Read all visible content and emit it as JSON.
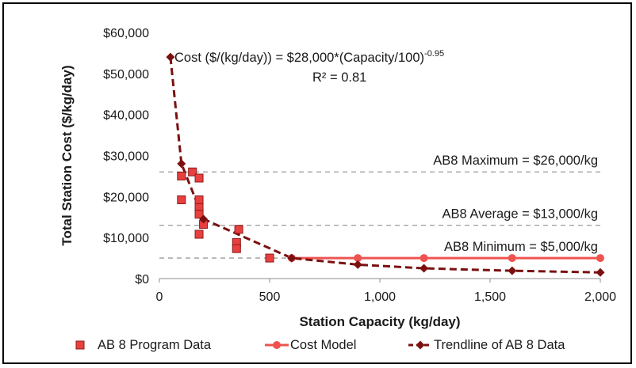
{
  "chart_data": {
    "type": "scatter",
    "xlabel": "Station Capacity (kg/day)",
    "ylabel": "Total Station Cost ($/kg/day)",
    "xlim": [
      0,
      2000
    ],
    "ylim": [
      0,
      60000
    ],
    "x_ticks": [
      "0",
      "500",
      "1,000",
      "1,500",
      "2,000"
    ],
    "y_ticks": [
      "$0",
      "$10,000",
      "$20,000",
      "$30,000",
      "$40,000",
      "$50,000",
      "$60,000"
    ],
    "x_tick_values": [
      0,
      500,
      1000,
      1500,
      2000
    ],
    "y_tick_values": [
      0,
      10000,
      20000,
      30000,
      40000,
      50000,
      60000
    ],
    "equation": {
      "main": "Cost ($/(kg/day)) = $28,000*(Capacity/100)",
      "exponent": "-0.95",
      "r2": "R² = 0.81"
    },
    "reference_lines": [
      {
        "label": "AB8 Maximum = $26,000/kg",
        "y": 26000
      },
      {
        "label": "AB8 Average = $13,000/kg",
        "y": 13000
      },
      {
        "label": "AB8 Minimum = $5,000/kg",
        "y": 5000
      }
    ],
    "series": [
      {
        "name": "AB 8 Program Data",
        "kind": "scatter",
        "marker": "square",
        "color": "#e8403f",
        "edge_color": "#8b1a1a",
        "points": [
          [
            100,
            25000
          ],
          [
            150,
            26000
          ],
          [
            180,
            24500
          ],
          [
            100,
            19200
          ],
          [
            180,
            19200
          ],
          [
            180,
            17300
          ],
          [
            180,
            15700
          ],
          [
            180,
            10800
          ],
          [
            200,
            13200
          ],
          [
            350,
            8800
          ],
          [
            350,
            7300
          ],
          [
            360,
            12000
          ],
          [
            500,
            5000
          ]
        ]
      },
      {
        "name": "Cost Model",
        "kind": "line",
        "marker": "circle",
        "color": "#ef5350",
        "points": [
          [
            600,
            5000
          ],
          [
            900,
            5000
          ],
          [
            1200,
            5000
          ],
          [
            1600,
            5000
          ],
          [
            2000,
            5000
          ]
        ]
      },
      {
        "name": "Trendline of AB 8 Data",
        "kind": "dashed-line",
        "marker": "diamond",
        "color": "#7a1010",
        "points": [
          [
            50,
            54000
          ],
          [
            100,
            28000
          ],
          [
            200,
            14500
          ],
          [
            600,
            5000
          ],
          [
            900,
            3400
          ],
          [
            1200,
            2500
          ],
          [
            1600,
            1900
          ],
          [
            2000,
            1500
          ]
        ]
      }
    ]
  }
}
